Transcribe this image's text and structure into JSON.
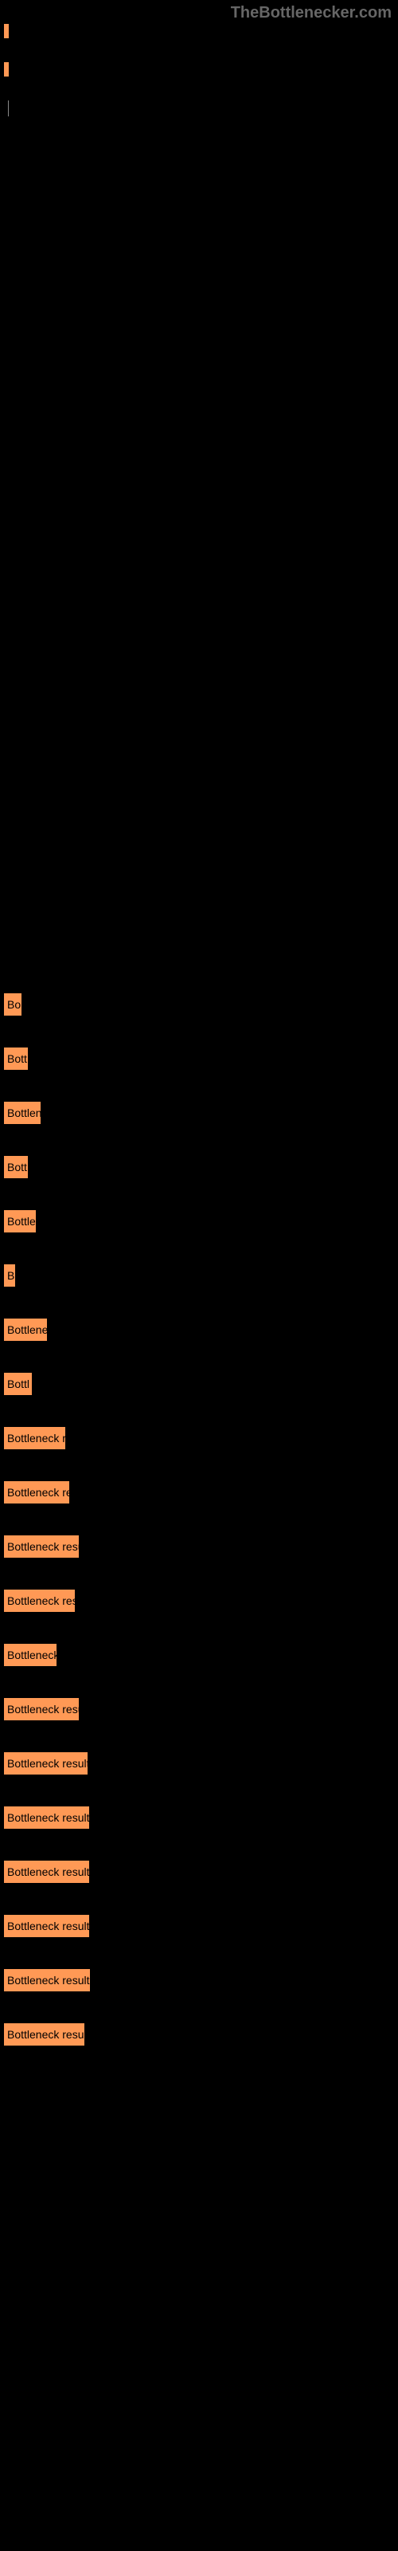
{
  "watermark": "TheBottlenecker.com",
  "top_bars": [
    {
      "width": 6
    },
    {
      "width": 6
    }
  ],
  "bottleneck_bars": [
    {
      "label": "Bo",
      "width": 22
    },
    {
      "label": "Bott",
      "width": 30
    },
    {
      "label": "Bottlen",
      "width": 46
    },
    {
      "label": "Bott",
      "width": 30
    },
    {
      "label": "Bottle",
      "width": 40
    },
    {
      "label": "B",
      "width": 14
    },
    {
      "label": "Bottlene",
      "width": 54
    },
    {
      "label": "Bottl",
      "width": 35
    },
    {
      "label": "Bottleneck r",
      "width": 77
    },
    {
      "label": "Bottleneck re",
      "width": 82
    },
    {
      "label": "Bottleneck resu",
      "width": 94
    },
    {
      "label": "Bottleneck res",
      "width": 89
    },
    {
      "label": "Bottleneck",
      "width": 66
    },
    {
      "label": "Bottleneck resu",
      "width": 94
    },
    {
      "label": "Bottleneck result",
      "width": 105
    },
    {
      "label": "Bottleneck result",
      "width": 107
    },
    {
      "label": "Bottleneck result",
      "width": 107
    },
    {
      "label": "Bottleneck result",
      "width": 107
    },
    {
      "label": "Bottleneck result",
      "width": 108
    },
    {
      "label": "Bottleneck resul",
      "width": 101
    }
  ],
  "colors": {
    "bar_fill": "#ff9955",
    "background": "#000000",
    "text": "#000000",
    "watermark": "#666666"
  }
}
